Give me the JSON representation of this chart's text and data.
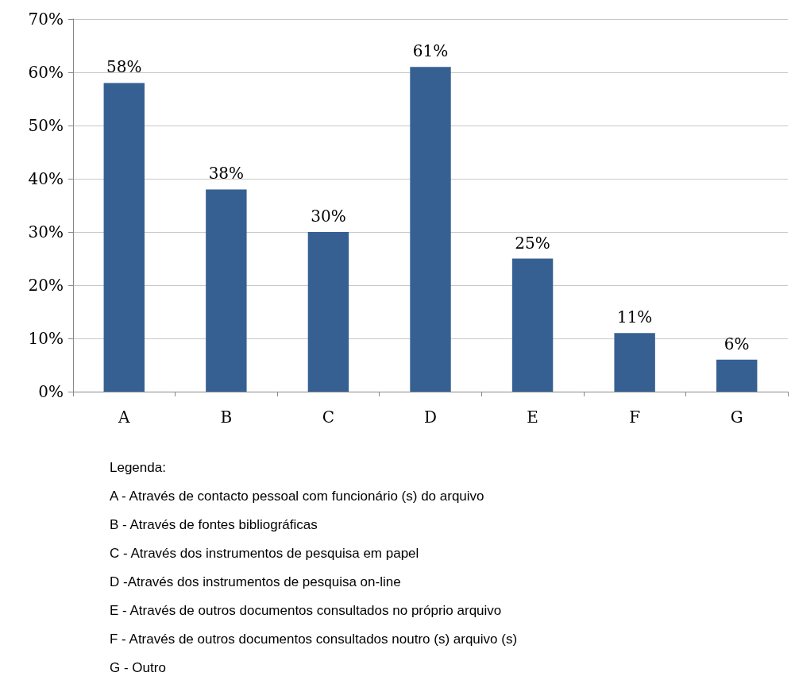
{
  "chart_data": {
    "type": "bar",
    "categories": [
      "A",
      "B",
      "C",
      "D",
      "E",
      "F",
      "G"
    ],
    "values": [
      58,
      38,
      30,
      61,
      25,
      11,
      6
    ],
    "value_labels": [
      "58%",
      "38%",
      "30%",
      "61%",
      "25%",
      "11%",
      "6%"
    ],
    "color": "#376092",
    "ylim": [
      0,
      70
    ],
    "yticks": [
      {
        "value": 0,
        "label": "0%"
      },
      {
        "value": 10,
        "label": "10%"
      },
      {
        "value": 20,
        "label": "20%"
      },
      {
        "value": 30,
        "label": "30%"
      },
      {
        "value": 40,
        "label": "40%"
      },
      {
        "value": 50,
        "label": "50%"
      },
      {
        "value": 60,
        "label": "60%"
      },
      {
        "value": 70,
        "label": "70%"
      }
    ],
    "grid": "y",
    "annotations": [
      "Legenda:",
      "A - Através de contacto pessoal com funcionário (s) do arquivo",
      "B - Através de fontes bibliográficas",
      "C - Através dos instrumentos de pesquisa em papel",
      "D -Através dos instrumentos de pesquisa on-line",
      "E - Através de outros documentos consultados no próprio arquivo",
      "F - Através de outros documentos consultados noutro (s) arquivo (s)",
      "G - Outro"
    ]
  }
}
